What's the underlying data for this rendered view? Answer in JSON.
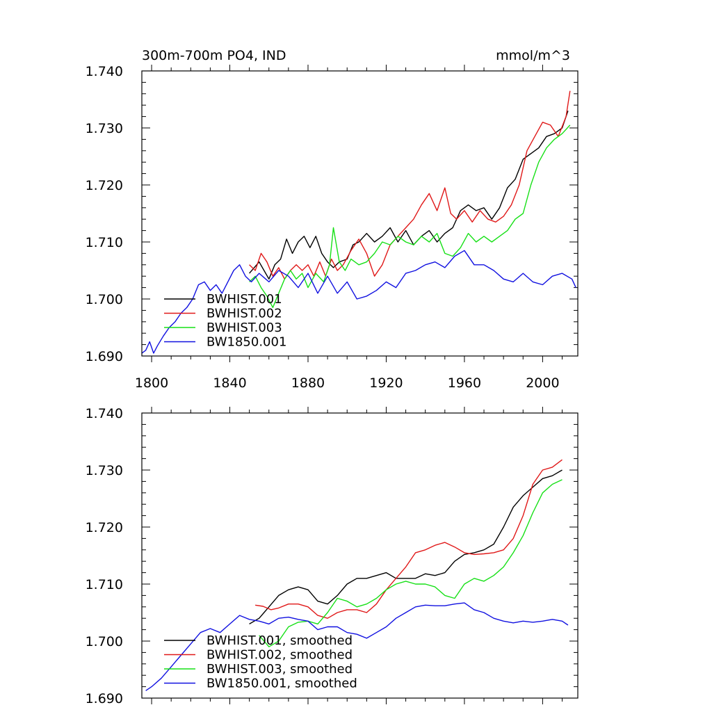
{
  "colors": {
    "black": "#000000",
    "red": "#e01818",
    "green": "#16e016",
    "blue": "#1010e0"
  },
  "chart_data": [
    {
      "type": "line",
      "title": "300m-700m PO4, IND",
      "units": "mmol/m^3",
      "xlabel": "",
      "ylabel": "",
      "xlim": [
        1795,
        2018
      ],
      "ylim": [
        1.69,
        1.74
      ],
      "xticks": [
        1800,
        1840,
        1880,
        1920,
        1960,
        2000
      ],
      "yticks": [
        1.69,
        1.7,
        1.71,
        1.72,
        1.73,
        1.74
      ],
      "ytick_labels": [
        "1.690",
        "1.700",
        "1.710",
        "1.720",
        "1.730",
        "1.740"
      ],
      "legend": "bottom-left",
      "series": [
        {
          "name": "BWHIST.001",
          "color": "#000000",
          "x": [
            1850,
            1855,
            1860,
            1863,
            1866,
            1869,
            1872,
            1875,
            1878,
            1881,
            1884,
            1887,
            1890,
            1893,
            1896,
            1900,
            1903,
            1906,
            1910,
            1914,
            1918,
            1922,
            1926,
            1930,
            1934,
            1938,
            1942,
            1946,
            1950,
            1954,
            1958,
            1962,
            1966,
            1970,
            1974,
            1978,
            1982,
            1986,
            1990,
            1994,
            1998,
            2002,
            2006,
            2010,
            2013
          ],
          "y": [
            1.7045,
            1.7065,
            1.7035,
            1.706,
            1.707,
            1.7105,
            1.708,
            1.71,
            1.711,
            1.709,
            1.711,
            1.708,
            1.7065,
            1.7055,
            1.7065,
            1.707,
            1.7095,
            1.71,
            1.7115,
            1.71,
            1.711,
            1.7125,
            1.71,
            1.712,
            1.7095,
            1.711,
            1.712,
            1.71,
            1.7115,
            1.7125,
            1.7155,
            1.7165,
            1.7155,
            1.716,
            1.714,
            1.716,
            1.7195,
            1.721,
            1.7245,
            1.7255,
            1.7265,
            1.7285,
            1.729,
            1.73,
            1.733
          ]
        },
        {
          "name": "BWHIST.002",
          "color": "#e01818",
          "x": [
            1850,
            1853,
            1856,
            1859,
            1862,
            1865,
            1868,
            1871,
            1874,
            1877,
            1880,
            1883,
            1886,
            1889,
            1892,
            1895,
            1898,
            1902,
            1906,
            1910,
            1914,
            1918,
            1922,
            1926,
            1930,
            1934,
            1938,
            1942,
            1946,
            1950,
            1953,
            1956,
            1960,
            1964,
            1968,
            1972,
            1976,
            1980,
            1984,
            1988,
            1992,
            1996,
            2000,
            2004,
            2008,
            2012,
            2014
          ],
          "y": [
            1.706,
            1.705,
            1.708,
            1.7065,
            1.704,
            1.7055,
            1.7035,
            1.705,
            1.706,
            1.705,
            1.706,
            1.704,
            1.7065,
            1.704,
            1.707,
            1.705,
            1.706,
            1.7085,
            1.7105,
            1.708,
            1.704,
            1.706,
            1.7095,
            1.711,
            1.7125,
            1.714,
            1.7165,
            1.7185,
            1.7155,
            1.7195,
            1.715,
            1.714,
            1.7155,
            1.7135,
            1.7155,
            1.714,
            1.7135,
            1.7145,
            1.7165,
            1.72,
            1.726,
            1.7285,
            1.731,
            1.7305,
            1.7285,
            1.732,
            1.7365
          ]
        },
        {
          "name": "BWHIST.003",
          "color": "#16e016",
          "x": [
            1850,
            1853,
            1856,
            1859,
            1862,
            1865,
            1868,
            1871,
            1874,
            1877,
            1880,
            1884,
            1888,
            1891,
            1893,
            1896,
            1899,
            1902,
            1906,
            1910,
            1914,
            1918,
            1922,
            1926,
            1930,
            1934,
            1938,
            1942,
            1946,
            1950,
            1954,
            1958,
            1962,
            1966,
            1970,
            1974,
            1978,
            1982,
            1986,
            1990,
            1994,
            1998,
            2002,
            2006,
            2010,
            2014
          ],
          "y": [
            1.703,
            1.704,
            1.702,
            1.7005,
            1.6985,
            1.701,
            1.7035,
            1.705,
            1.7035,
            1.7045,
            1.702,
            1.7045,
            1.703,
            1.706,
            1.7125,
            1.7065,
            1.705,
            1.707,
            1.706,
            1.7065,
            1.708,
            1.71,
            1.7095,
            1.711,
            1.71,
            1.7095,
            1.711,
            1.71,
            1.7115,
            1.708,
            1.7075,
            1.709,
            1.7115,
            1.71,
            1.711,
            1.71,
            1.711,
            1.712,
            1.714,
            1.715,
            1.72,
            1.724,
            1.7265,
            1.728,
            1.729,
            1.7305
          ]
        },
        {
          "name": "BW1850.001",
          "color": "#1010e0",
          "x": [
            1795,
            1797,
            1799,
            1801,
            1803,
            1806,
            1809,
            1812,
            1815,
            1818,
            1821,
            1824,
            1827,
            1830,
            1833,
            1836,
            1839,
            1842,
            1845,
            1848,
            1851,
            1855,
            1860,
            1865,
            1870,
            1875,
            1880,
            1885,
            1890,
            1895,
            1900,
            1905,
            1910,
            1915,
            1920,
            1925,
            1930,
            1935,
            1940,
            1945,
            1950,
            1955,
            1960,
            1965,
            1970,
            1975,
            1980,
            1985,
            1990,
            1995,
            2000,
            2005,
            2010,
            2015,
            2017
          ],
          "y": [
            1.6905,
            1.691,
            1.6925,
            1.6905,
            1.6918,
            1.6935,
            1.695,
            1.696,
            1.6975,
            1.6985,
            1.7,
            1.7025,
            1.703,
            1.7015,
            1.7025,
            1.701,
            1.703,
            1.705,
            1.706,
            1.704,
            1.703,
            1.7045,
            1.703,
            1.705,
            1.704,
            1.702,
            1.7045,
            1.701,
            1.704,
            1.701,
            1.703,
            1.7,
            1.7005,
            1.7015,
            1.703,
            1.702,
            1.7045,
            1.705,
            1.706,
            1.7065,
            1.7055,
            1.7075,
            1.7085,
            1.706,
            1.706,
            1.705,
            1.7035,
            1.703,
            1.7045,
            1.703,
            1.7025,
            1.704,
            1.7045,
            1.7035,
            1.702
          ]
        }
      ]
    },
    {
      "type": "line",
      "title": "",
      "xlabel": "",
      "ylabel": "",
      "xlim": [
        1795,
        2018
      ],
      "ylim": [
        1.69,
        1.74
      ],
      "xticks": [
        1800,
        1840,
        1880,
        1920,
        1960,
        2000
      ],
      "yticks": [
        1.69,
        1.7,
        1.71,
        1.72,
        1.73,
        1.74
      ],
      "ytick_labels": [
        "1.690",
        "1.700",
        "1.710",
        "1.720",
        "1.730",
        "1.740"
      ],
      "legend": "bottom-left",
      "series": [
        {
          "name": "BWHIST.001, smoothed",
          "color": "#000000",
          "x": [
            1850,
            1855,
            1860,
            1865,
            1870,
            1875,
            1880,
            1885,
            1890,
            1895,
            1900,
            1905,
            1910,
            1915,
            1920,
            1925,
            1930,
            1935,
            1940,
            1945,
            1950,
            1955,
            1960,
            1965,
            1970,
            1975,
            1980,
            1985,
            1990,
            1995,
            2000,
            2005,
            2010
          ],
          "y": [
            1.703,
            1.704,
            1.706,
            1.708,
            1.709,
            1.7095,
            1.709,
            1.707,
            1.7065,
            1.708,
            1.71,
            1.711,
            1.711,
            1.7115,
            1.712,
            1.711,
            1.711,
            1.711,
            1.7118,
            1.7115,
            1.712,
            1.714,
            1.7152,
            1.7155,
            1.716,
            1.717,
            1.72,
            1.7235,
            1.7255,
            1.727,
            1.7285,
            1.729,
            1.73
          ]
        },
        {
          "name": "BWHIST.002, smoothed",
          "color": "#e01818",
          "x": [
            1853,
            1857,
            1861,
            1865,
            1870,
            1875,
            1880,
            1885,
            1890,
            1895,
            1900,
            1905,
            1910,
            1915,
            1920,
            1925,
            1930,
            1935,
            1940,
            1945,
            1950,
            1955,
            1960,
            1965,
            1970,
            1975,
            1980,
            1985,
            1990,
            1995,
            2000,
            2005,
            2010
          ],
          "y": [
            1.7063,
            1.7061,
            1.7055,
            1.7058,
            1.7065,
            1.7065,
            1.706,
            1.7045,
            1.704,
            1.705,
            1.7055,
            1.7055,
            1.705,
            1.7065,
            1.709,
            1.711,
            1.713,
            1.7155,
            1.716,
            1.7168,
            1.7173,
            1.7165,
            1.7155,
            1.7152,
            1.7153,
            1.7155,
            1.716,
            1.718,
            1.722,
            1.7275,
            1.73,
            1.7305,
            1.7318
          ]
        },
        {
          "name": "BWHIST.003, smoothed",
          "color": "#16e016",
          "x": [
            1855,
            1860,
            1865,
            1870,
            1875,
            1880,
            1885,
            1890,
            1895,
            1900,
            1905,
            1910,
            1915,
            1920,
            1925,
            1930,
            1935,
            1940,
            1945,
            1950,
            1955,
            1960,
            1965,
            1970,
            1975,
            1980,
            1985,
            1990,
            1995,
            2000,
            2005,
            2010
          ],
          "y": [
            1.701,
            1.699,
            1.7,
            1.7025,
            1.7033,
            1.7035,
            1.703,
            1.705,
            1.7075,
            1.707,
            1.706,
            1.7065,
            1.7075,
            1.709,
            1.71,
            1.7105,
            1.71,
            1.71,
            1.7095,
            1.708,
            1.7075,
            1.71,
            1.711,
            1.7105,
            1.7115,
            1.713,
            1.7155,
            1.7185,
            1.7225,
            1.726,
            1.7275,
            1.7283
          ]
        },
        {
          "name": "BW1850.001, smoothed",
          "color": "#1010e0",
          "x": [
            1797,
            1800,
            1805,
            1810,
            1815,
            1820,
            1825,
            1830,
            1835,
            1840,
            1845,
            1850,
            1855,
            1860,
            1865,
            1870,
            1875,
            1880,
            1885,
            1890,
            1895,
            1900,
            1905,
            1910,
            1915,
            1920,
            1925,
            1930,
            1935,
            1940,
            1945,
            1950,
            1955,
            1960,
            1965,
            1970,
            1975,
            1980,
            1985,
            1990,
            1995,
            2000,
            2005,
            2010,
            2013
          ],
          "y": [
            1.6913,
            1.692,
            1.6935,
            1.6955,
            1.6975,
            1.6995,
            1.7015,
            1.7022,
            1.7015,
            1.703,
            1.7045,
            1.7038,
            1.7035,
            1.703,
            1.704,
            1.7042,
            1.7038,
            1.7035,
            1.702,
            1.7025,
            1.7025,
            1.7015,
            1.7012,
            1.7005,
            1.7015,
            1.7025,
            1.704,
            1.705,
            1.706,
            1.7063,
            1.7062,
            1.7062,
            1.7065,
            1.7067,
            1.7055,
            1.705,
            1.704,
            1.7035,
            1.7032,
            1.7035,
            1.7033,
            1.7035,
            1.7038,
            1.7035,
            1.7028
          ]
        }
      ]
    }
  ]
}
